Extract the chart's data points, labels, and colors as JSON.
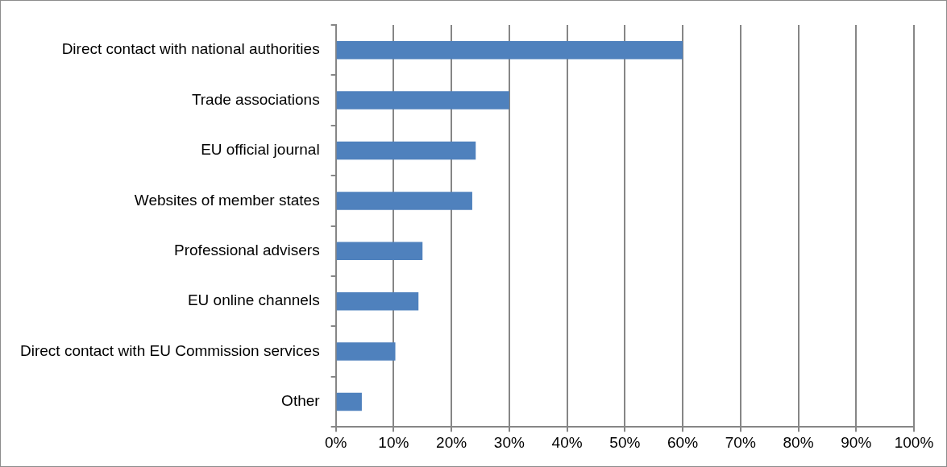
{
  "chart_data": {
    "type": "bar",
    "orientation": "horizontal",
    "categories": [
      "Direct contact with national authorities",
      "Trade associations",
      "EU official journal",
      "Websites of member states",
      "Professional advisers",
      "EU online channels",
      "Direct contact with EU Commission services",
      "Other"
    ],
    "values": [
      60,
      30,
      24.2,
      23.6,
      15,
      14.3,
      10.3,
      4.5
    ],
    "color": "#4f81bd",
    "xlim": [
      0,
      100
    ],
    "xticks": [
      {
        "value": 0,
        "label": "0%"
      },
      {
        "value": 10,
        "label": "10%"
      },
      {
        "value": 20,
        "label": "20%"
      },
      {
        "value": 30,
        "label": "30%"
      },
      {
        "value": 40,
        "label": "40%"
      },
      {
        "value": 50,
        "label": "50%"
      },
      {
        "value": 60,
        "label": "60%"
      },
      {
        "value": 70,
        "label": "70%"
      },
      {
        "value": 80,
        "label": "80%"
      },
      {
        "value": 90,
        "label": "90%"
      },
      {
        "value": 100,
        "label": "100%"
      }
    ],
    "grid": "x",
    "legend": false
  }
}
